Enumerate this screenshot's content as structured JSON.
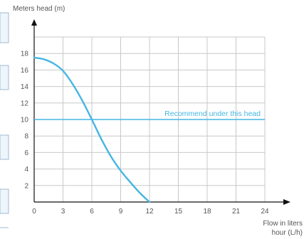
{
  "chart_data": {
    "type": "line",
    "title": "",
    "ylabel": "Meters head (m)",
    "xlabel_line1": "Flow in liters",
    "xlabel_line2": "hour (L/h)",
    "xlim": [
      0,
      24
    ],
    "ylim": [
      0,
      20
    ],
    "x_ticks": [
      0,
      3,
      6,
      9,
      12,
      15,
      18,
      21,
      24
    ],
    "y_ticks": [
      2,
      4,
      6,
      8,
      10,
      12,
      14,
      16,
      18
    ],
    "grid": true,
    "series": [
      {
        "x": [
          0,
          1,
          2,
          3,
          4,
          5,
          6,
          7,
          8,
          9,
          10,
          11,
          12
        ],
        "y": [
          17.5,
          17.3,
          16.8,
          15.9,
          14.3,
          12.3,
          10.0,
          7.6,
          5.5,
          3.8,
          2.4,
          1.1,
          0.0
        ],
        "color": "#45b6e3"
      }
    ],
    "reference_line": {
      "y": 10,
      "label": "Recommend under this head",
      "color": "#45b6e3"
    }
  }
}
